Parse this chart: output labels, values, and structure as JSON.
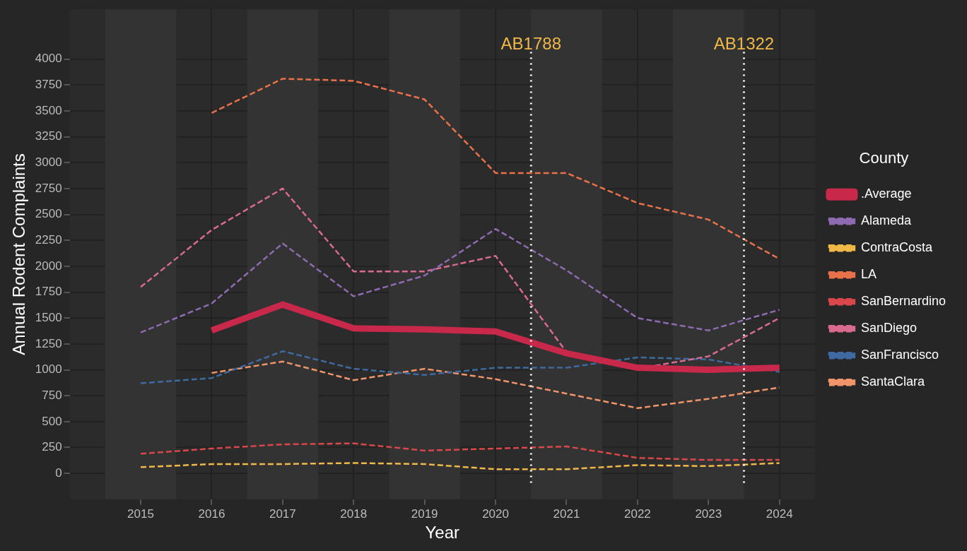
{
  "chart_data": {
    "type": "line",
    "xlabel": "Year",
    "ylabel": "Annual Rodent Complaints",
    "legend_title": "County",
    "legend": "right",
    "grid": true,
    "marker": "none",
    "x": [
      2015,
      2016,
      2017,
      2018,
      2019,
      2020,
      2021,
      2022,
      2023,
      2024
    ],
    "xlim": [
      2014,
      2024.5
    ],
    "xticks": [
      2015,
      2016,
      2017,
      2018,
      2019,
      2020,
      2021,
      2022,
      2023,
      2024
    ],
    "ylim": [
      -250,
      4480
    ],
    "yticks": [
      0,
      250,
      500,
      750,
      1000,
      1250,
      1500,
      1750,
      2000,
      2250,
      2500,
      2750,
      3000,
      3250,
      3500,
      3750,
      4000
    ],
    "series": [
      {
        "name": ".Average",
        "color": "#c8294a",
        "line_style": "solid",
        "values": [
          null,
          1380,
          1630,
          1400,
          1390,
          1370,
          1160,
          1020,
          1000,
          1020
        ]
      },
      {
        "name": "Alameda",
        "color": "#8e6bb0",
        "line_style": "dashed",
        "values": [
          1360,
          1640,
          2220,
          1710,
          1910,
          2360,
          1960,
          1500,
          1380,
          1580
        ]
      },
      {
        "name": "ContraCosta",
        "color": "#f0b847",
        "line_style": "dashed",
        "values": [
          60,
          90,
          90,
          100,
          90,
          40,
          40,
          80,
          70,
          100
        ]
      },
      {
        "name": "LA",
        "color": "#e8714a",
        "line_style": "dashed",
        "values": [
          null,
          3480,
          3810,
          3790,
          3610,
          2900,
          2900,
          2610,
          2450,
          2070
        ]
      },
      {
        "name": "SanBernardino",
        "color": "#d9474a",
        "line_style": "dashed",
        "values": [
          190,
          240,
          280,
          290,
          220,
          240,
          260,
          150,
          130,
          130
        ]
      },
      {
        "name": "SanDiego",
        "color": "#d96b8e",
        "line_style": "dashed",
        "values": [
          1800,
          2350,
          2750,
          1950,
          1950,
          2100,
          1170,
          1010,
          1130,
          1500
        ]
      },
      {
        "name": "SanFrancisco",
        "color": "#3f6aa1",
        "line_style": "dashed",
        "values": [
          870,
          920,
          1180,
          1010,
          950,
          1020,
          1020,
          1120,
          1100,
          980
        ]
      },
      {
        "name": "SantaClara",
        "color": "#f0956a",
        "line_style": "dashed",
        "values": [
          null,
          970,
          1080,
          900,
          1010,
          910,
          770,
          630,
          720,
          830
        ]
      }
    ],
    "bands": [
      {
        "axis": "x",
        "from": 2014.5,
        "to": 2015.5,
        "color": "#333333"
      },
      {
        "axis": "x",
        "from": 2016.5,
        "to": 2017.5,
        "color": "#333333"
      },
      {
        "axis": "x",
        "from": 2018.5,
        "to": 2019.5,
        "color": "#333333"
      },
      {
        "axis": "x",
        "from": 2020.5,
        "to": 2021.5,
        "color": "#333333"
      },
      {
        "axis": "x",
        "from": 2022.5,
        "to": 2023.5,
        "color": "#333333"
      }
    ],
    "ref_lines": [
      {
        "axis": "x",
        "value": 2020.5,
        "label": "AB1788",
        "color": "#ffffff",
        "line_style": "dotted"
      },
      {
        "axis": "x",
        "value": 2023.5,
        "label": "AB1322",
        "color": "#ffffff",
        "line_style": "dotted"
      }
    ]
  }
}
